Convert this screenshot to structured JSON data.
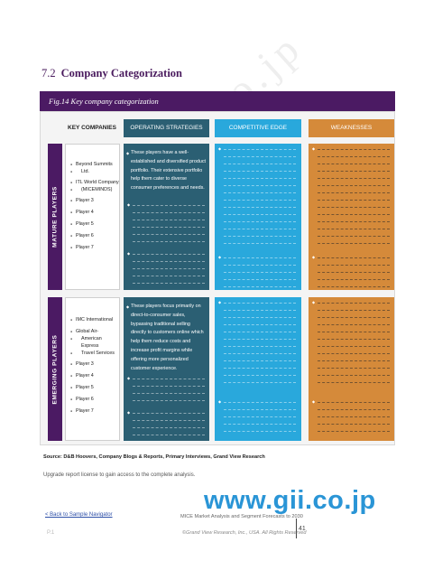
{
  "watermark": "www.gii.co.jp",
  "section": {
    "number": "7.2",
    "title": "Company Categorization"
  },
  "figure": {
    "caption": "Fig.14  Key company categorization"
  },
  "headers": {
    "key_companies": "KEY COMPANIES",
    "operating_strategies": "OPERATING STRATEGIES",
    "competitive_edge": "COMPETITIVE EDGE",
    "weaknesses": "WEAKNESSES"
  },
  "rows": [
    {
      "label": "MATURE PLAYERS",
      "companies": [
        "Beyond Summits",
        "Ltd.",
        "ITL World Company",
        "(MICEMINDS)",
        "Player 3",
        "Player 4",
        "Player 5",
        "Player 6",
        "Player 7"
      ],
      "strategy_text": "These players have a well-established and diversified product portfolio. Their extensive portfolio help them cater to diverse consumer preferences and needs."
    },
    {
      "label": "EMERGING PLAYERS",
      "companies": [
        "IMC International",
        "Global Air-",
        "American Express",
        "Travel Services",
        "Player 3",
        "Player 4",
        "Player 5",
        "Player 6",
        "Player 7"
      ],
      "strategy_text": "These players focus primarily on direct-to-consumer sales, bypassing traditional selling directly to customers online which help them reduce costs and increase profit margins while offering more personalized customer experience."
    }
  ],
  "source": "Source: D&B Hoovers, Company Blogs & Reports, Primary Interviews, Grand View Research",
  "upgrade_note": "Upgrade report license to gain access to the complete analysis.",
  "logo": "www.gii.co.jp",
  "footer": {
    "back_link": "< Back to Sample Navigator",
    "report_title": "MICE Market Analysis and Segment Forecasts to 2030",
    "copyright": "©Grand View Research, Inc., USA. All Rights Reserved",
    "page_number": "41",
    "page_mark": "P.1"
  }
}
